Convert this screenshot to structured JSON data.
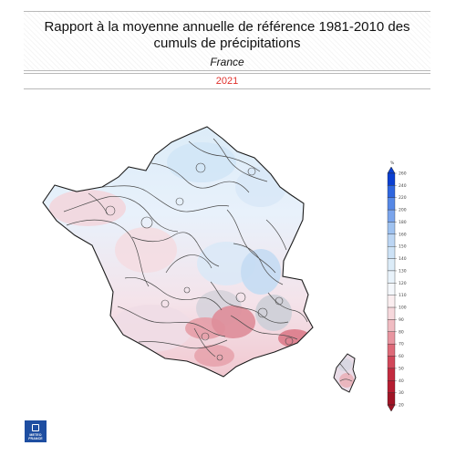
{
  "header": {
    "title": "Rapport à la moyenne annuelle de référence 1981-2010 des cumuls de précipitations",
    "subtitle": "France",
    "year": "2021"
  },
  "legend": {
    "unit": "%",
    "ticks": [
      "260",
      "240",
      "220",
      "200",
      "180",
      "160",
      "150",
      "140",
      "130",
      "120",
      "110",
      "100",
      "90",
      "80",
      "70",
      "60",
      "50",
      "40",
      "30",
      "20"
    ],
    "colors_top_to_bottom": [
      "#0b3fd1",
      "#2f66df",
      "#5688e6",
      "#7ba5ec",
      "#9fc2f0",
      "#bcd6f4",
      "#cde2f6",
      "#dcecf8",
      "#e9f3fb",
      "#f5f8fc",
      "#fbeef0",
      "#f6d8dc",
      "#f0bcc2",
      "#e895a0",
      "#de6a78",
      "#d14759",
      "#c32b3f",
      "#b51d31",
      "#a01426"
    ],
    "top_arrow_color": "#0b3fd1",
    "bottom_arrow_color": "#a01426"
  },
  "logo": {
    "line1": "METEO",
    "line2": "FRANCE",
    "color": "#1e4ea1"
  }
}
